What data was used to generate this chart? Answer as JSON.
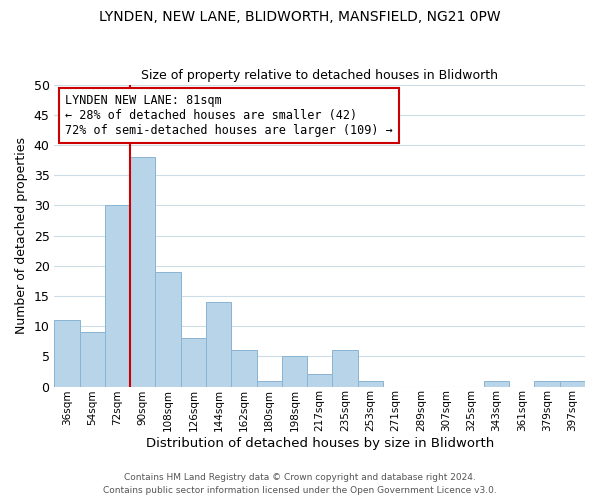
{
  "title": "LYNDEN, NEW LANE, BLIDWORTH, MANSFIELD, NG21 0PW",
  "subtitle": "Size of property relative to detached houses in Blidworth",
  "xlabel": "Distribution of detached houses by size in Blidworth",
  "ylabel": "Number of detached properties",
  "bar_color": "#b8d4e8",
  "bar_edge_color": "#8ab4d4",
  "categories": [
    "36sqm",
    "54sqm",
    "72sqm",
    "90sqm",
    "108sqm",
    "126sqm",
    "144sqm",
    "162sqm",
    "180sqm",
    "198sqm",
    "217sqm",
    "235sqm",
    "253sqm",
    "271sqm",
    "289sqm",
    "307sqm",
    "325sqm",
    "343sqm",
    "361sqm",
    "379sqm",
    "397sqm"
  ],
  "values": [
    11,
    9,
    30,
    38,
    19,
    8,
    14,
    6,
    1,
    5,
    2,
    6,
    1,
    0,
    0,
    0,
    0,
    1,
    0,
    1,
    1
  ],
  "ylim": [
    0,
    50
  ],
  "yticks": [
    0,
    5,
    10,
    15,
    20,
    25,
    30,
    35,
    40,
    45,
    50
  ],
  "property_line_color": "#cc0000",
  "annotation_line1": "LYNDEN NEW LANE: 81sqm",
  "annotation_line2": "← 28% of detached houses are smaller (42)",
  "annotation_line3": "72% of semi-detached houses are larger (109) →",
  "annotation_box_color": "#ffffff",
  "annotation_box_edge": "#cc0000",
  "footer_line1": "Contains HM Land Registry data © Crown copyright and database right 2024.",
  "footer_line2": "Contains public sector information licensed under the Open Government Licence v3.0.",
  "background_color": "#ffffff",
  "grid_color": "#ccdde8"
}
